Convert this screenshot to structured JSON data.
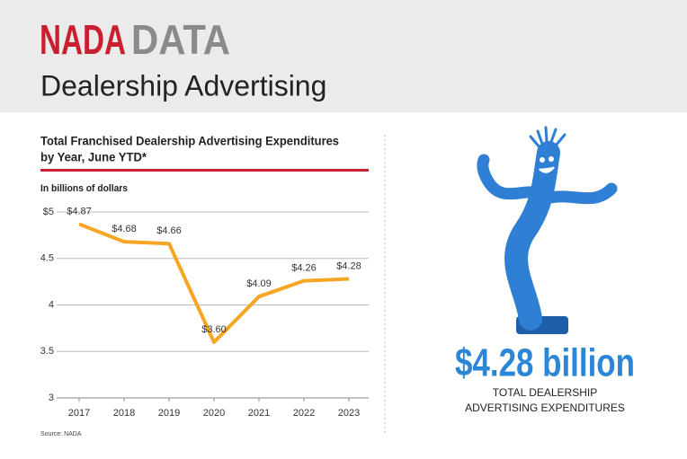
{
  "header": {
    "brand_red": "NADA",
    "brand_gray": "DATA",
    "title": "Dealership Advertising"
  },
  "chart_data": {
    "type": "line",
    "title": [
      "Total Franchised Dealership Advertising Expenditures",
      "by Year, June YTD*"
    ],
    "y_label": "In billions of dollars",
    "categories": [
      "2017",
      "2018",
      "2019",
      "2020",
      "2021",
      "2022",
      "2023"
    ],
    "values": [
      4.87,
      4.68,
      4.66,
      3.6,
      4.09,
      4.26,
      4.28
    ],
    "value_labels": [
      "$4.87",
      "$4.68",
      "$4.66",
      "$3.60",
      "$4.09",
      "$4.26",
      "$4.28"
    ],
    "color": "#f6a623",
    "ylim": [
      3,
      5
    ],
    "yticks": [
      3,
      3.5,
      4,
      4.5,
      {
        "value": 5,
        "label": "$5"
      }
    ],
    "grid": true,
    "source": "Source: NADA"
  },
  "callout": {
    "headline": "$4.28 billion",
    "caption": [
      "TOTAL DEALERSHIP",
      "ADVERTISING EXPENDITURES"
    ]
  }
}
